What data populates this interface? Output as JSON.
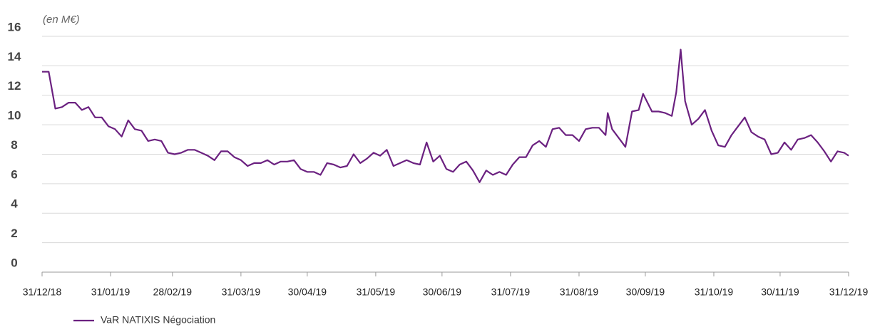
{
  "chart_data": {
    "type": "line",
    "unit_label": "(en M€)",
    "x": [
      "2018-12-31",
      "2019-01-03",
      "2019-01-06",
      "2019-01-09",
      "2019-01-12",
      "2019-01-15",
      "2019-01-18",
      "2019-01-21",
      "2019-01-24",
      "2019-01-27",
      "2019-01-30",
      "2019-02-02",
      "2019-02-05",
      "2019-02-08",
      "2019-02-11",
      "2019-02-14",
      "2019-02-17",
      "2019-02-20",
      "2019-02-23",
      "2019-02-26",
      "2019-03-01",
      "2019-03-04",
      "2019-03-07",
      "2019-03-10",
      "2019-03-13",
      "2019-03-16",
      "2019-03-19",
      "2019-03-22",
      "2019-03-25",
      "2019-03-28",
      "2019-03-31",
      "2019-04-03",
      "2019-04-06",
      "2019-04-09",
      "2019-04-12",
      "2019-04-15",
      "2019-04-18",
      "2019-04-21",
      "2019-04-24",
      "2019-04-27",
      "2019-04-30",
      "2019-05-03",
      "2019-05-06",
      "2019-05-09",
      "2019-05-12",
      "2019-05-15",
      "2019-05-18",
      "2019-05-21",
      "2019-05-24",
      "2019-05-27",
      "2019-05-30",
      "2019-06-02",
      "2019-06-05",
      "2019-06-08",
      "2019-06-11",
      "2019-06-14",
      "2019-06-17",
      "2019-06-20",
      "2019-06-23",
      "2019-06-26",
      "2019-06-29",
      "2019-07-02",
      "2019-07-05",
      "2019-07-08",
      "2019-07-11",
      "2019-07-14",
      "2019-07-17",
      "2019-07-20",
      "2019-07-23",
      "2019-07-26",
      "2019-07-29",
      "2019-08-01",
      "2019-08-04",
      "2019-08-07",
      "2019-08-10",
      "2019-08-13",
      "2019-08-16",
      "2019-08-19",
      "2019-08-22",
      "2019-08-25",
      "2019-08-28",
      "2019-08-31",
      "2019-09-03",
      "2019-09-06",
      "2019-09-09",
      "2019-09-12",
      "2019-09-13",
      "2019-09-15",
      "2019-09-18",
      "2019-09-21",
      "2019-09-24",
      "2019-09-27",
      "2019-09-29",
      "2019-10-03",
      "2019-10-06",
      "2019-10-09",
      "2019-10-12",
      "2019-10-14",
      "2019-10-16",
      "2019-10-18",
      "2019-10-21",
      "2019-10-24",
      "2019-10-27",
      "2019-10-30",
      "2019-11-02",
      "2019-11-05",
      "2019-11-08",
      "2019-11-11",
      "2019-11-14",
      "2019-11-17",
      "2019-11-20",
      "2019-11-23",
      "2019-11-26",
      "2019-11-29",
      "2019-12-02",
      "2019-12-05",
      "2019-12-08",
      "2019-12-11",
      "2019-12-14",
      "2019-12-17",
      "2019-12-20",
      "2019-12-23",
      "2019-12-26",
      "2019-12-29",
      "2019-12-31"
    ],
    "series": [
      {
        "name": "VaR NATIXIS Négociation",
        "color": "#6b2180",
        "values": [
          13.6,
          13.6,
          11.1,
          11.2,
          11.5,
          11.5,
          11.0,
          11.2,
          10.5,
          10.5,
          9.9,
          9.7,
          9.2,
          10.3,
          9.7,
          9.6,
          8.9,
          9.0,
          8.9,
          8.1,
          8.0,
          8.1,
          8.3,
          8.3,
          8.1,
          7.9,
          7.6,
          8.2,
          8.2,
          7.8,
          7.6,
          7.2,
          7.4,
          7.4,
          7.6,
          7.3,
          7.5,
          7.5,
          7.6,
          7.0,
          6.8,
          6.8,
          6.6,
          7.4,
          7.3,
          7.1,
          7.2,
          8.0,
          7.4,
          7.7,
          8.1,
          7.9,
          8.3,
          7.2,
          7.4,
          7.6,
          7.4,
          7.3,
          8.8,
          7.5,
          7.9,
          7.0,
          6.8,
          7.3,
          7.5,
          6.9,
          6.1,
          6.9,
          6.6,
          6.8,
          6.6,
          7.3,
          7.8,
          7.8,
          8.6,
          8.9,
          8.5,
          9.7,
          9.8,
          9.3,
          9.3,
          8.9,
          9.7,
          9.8,
          9.8,
          9.3,
          10.8,
          9.7,
          9.1,
          8.5,
          10.9,
          11.0,
          12.1,
          10.9,
          10.9,
          10.8,
          10.6,
          12.2,
          15.1,
          11.6,
          10.0,
          10.4,
          11.0,
          9.6,
          8.6,
          8.5,
          9.3,
          9.9,
          10.5,
          9.5,
          9.2,
          9.0,
          8.0,
          8.1,
          8.8,
          8.3,
          9.0,
          9.1,
          9.3,
          8.8,
          8.2,
          7.5,
          8.2,
          8.1,
          7.9
        ]
      }
    ],
    "xlim": [
      "2018-12-31",
      "2019-12-31"
    ],
    "xticks": [
      {
        "value": "2018-12-31",
        "label": "31/12/18"
      },
      {
        "value": "2019-01-31",
        "label": "31/01/19"
      },
      {
        "value": "2019-02-28",
        "label": "28/02/19"
      },
      {
        "value": "2019-03-31",
        "label": "31/03/19"
      },
      {
        "value": "2019-04-30",
        "label": "30/04/19"
      },
      {
        "value": "2019-05-31",
        "label": "31/05/19"
      },
      {
        "value": "2019-06-30",
        "label": "30/06/19"
      },
      {
        "value": "2019-07-31",
        "label": "31/07/19"
      },
      {
        "value": "2019-08-31",
        "label": "31/08/19"
      },
      {
        "value": "2019-09-30",
        "label": "30/09/19"
      },
      {
        "value": "2019-10-31",
        "label": "31/10/19"
      },
      {
        "value": "2019-11-30",
        "label": "30/11/19"
      },
      {
        "value": "2019-12-31",
        "label": "31/12/19"
      }
    ],
    "ylim": [
      0,
      16
    ],
    "yticks": [
      0,
      2,
      4,
      6,
      8,
      10,
      12,
      14,
      16
    ],
    "grid": true
  }
}
